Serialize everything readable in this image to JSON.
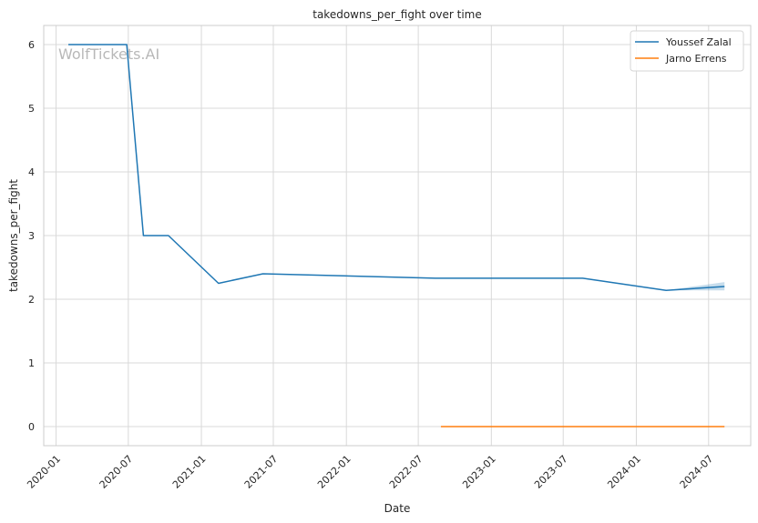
{
  "chart_data": {
    "type": "line",
    "title": "takedowns_per_fight over time",
    "xlabel": "Date",
    "ylabel": "takedowns_per_fight",
    "watermark": "WolfTickets.AI",
    "x_ticks": [
      "2020-01",
      "2020-07",
      "2021-01",
      "2021-07",
      "2022-01",
      "2022-07",
      "2023-01",
      "2023-07",
      "2024-01",
      "2024-07"
    ],
    "y_ticks": [
      0,
      1,
      2,
      3,
      4,
      5,
      6
    ],
    "xlim": [
      "2019-12-01",
      "2024-10-15"
    ],
    "ylim": [
      -0.3,
      6.3
    ],
    "grid": true,
    "legend_position": "top-right",
    "series": [
      {
        "name": "Youssef Zalal",
        "color": "#1f77b4",
        "points": [
          {
            "x": "2020-02-01",
            "y": 6.0
          },
          {
            "x": "2020-06-27",
            "y": 6.0
          },
          {
            "x": "2020-08-08",
            "y": 3.0
          },
          {
            "x": "2020-10-10",
            "y": 3.0
          },
          {
            "x": "2021-02-13",
            "y": 2.25
          },
          {
            "x": "2021-06-05",
            "y": 2.4
          },
          {
            "x": "2022-08-13",
            "y": 2.33
          },
          {
            "x": "2023-08-19",
            "y": 2.33
          },
          {
            "x": "2024-03-16",
            "y": 2.14
          },
          {
            "x": "2024-08-10",
            "y": 2.2
          }
        ],
        "band": {
          "x_start": "2024-03-16",
          "x_end": "2024-08-10",
          "low_end": 2.14,
          "high_end": 2.27
        }
      },
      {
        "name": "Jarno Errens",
        "color": "#ff7f0e",
        "points": [
          {
            "x": "2022-08-27",
            "y": 0
          },
          {
            "x": "2024-08-10",
            "y": 0
          }
        ]
      }
    ]
  }
}
